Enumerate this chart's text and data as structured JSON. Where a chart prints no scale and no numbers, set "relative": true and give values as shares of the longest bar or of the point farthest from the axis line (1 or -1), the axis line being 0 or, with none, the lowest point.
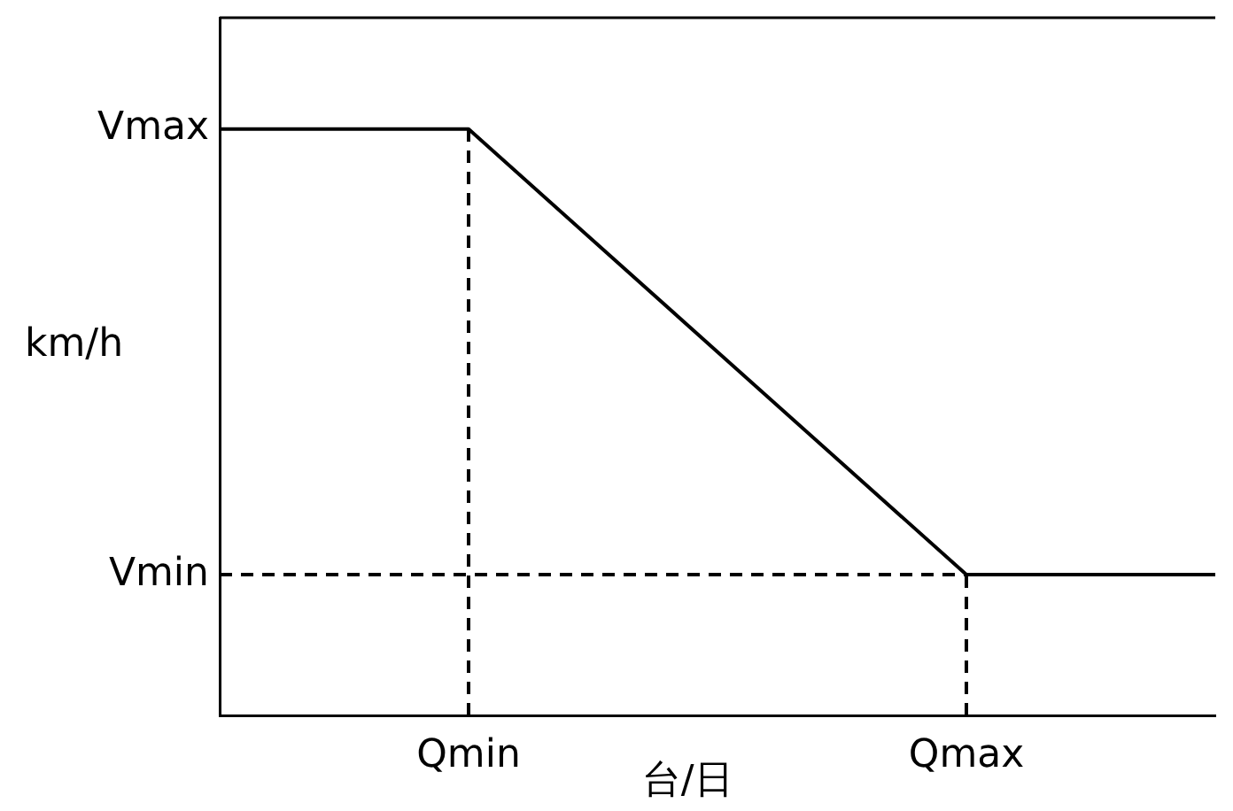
{
  "chart_data": {
    "type": "line",
    "xlabel": "台/日",
    "ylabel": "km/h",
    "relative": true,
    "categories": [
      null,
      "Qmin",
      null,
      "Qmax",
      null
    ],
    "grid": false,
    "legend": false,
    "marker": "none",
    "series": [
      {
        "color": "#000000",
        "values": [
          1,
          1,
          0.62,
          0.24,
          0.24
        ],
        "line_style": "solid"
      }
    ],
    "ref_lines": [
      {
        "axis": "y",
        "value": 0.24,
        "color": "#000000",
        "line_style": "dashed",
        "label": "Vmin"
      },
      {
        "axis": "x",
        "value": "Qmin",
        "color": "#000000",
        "line_style": "dashed"
      },
      {
        "axis": "x",
        "value": "Qmax",
        "color": "#000000",
        "line_style": "dashed"
      }
    ],
    "annotations": [
      "Vmax"
    ]
  }
}
